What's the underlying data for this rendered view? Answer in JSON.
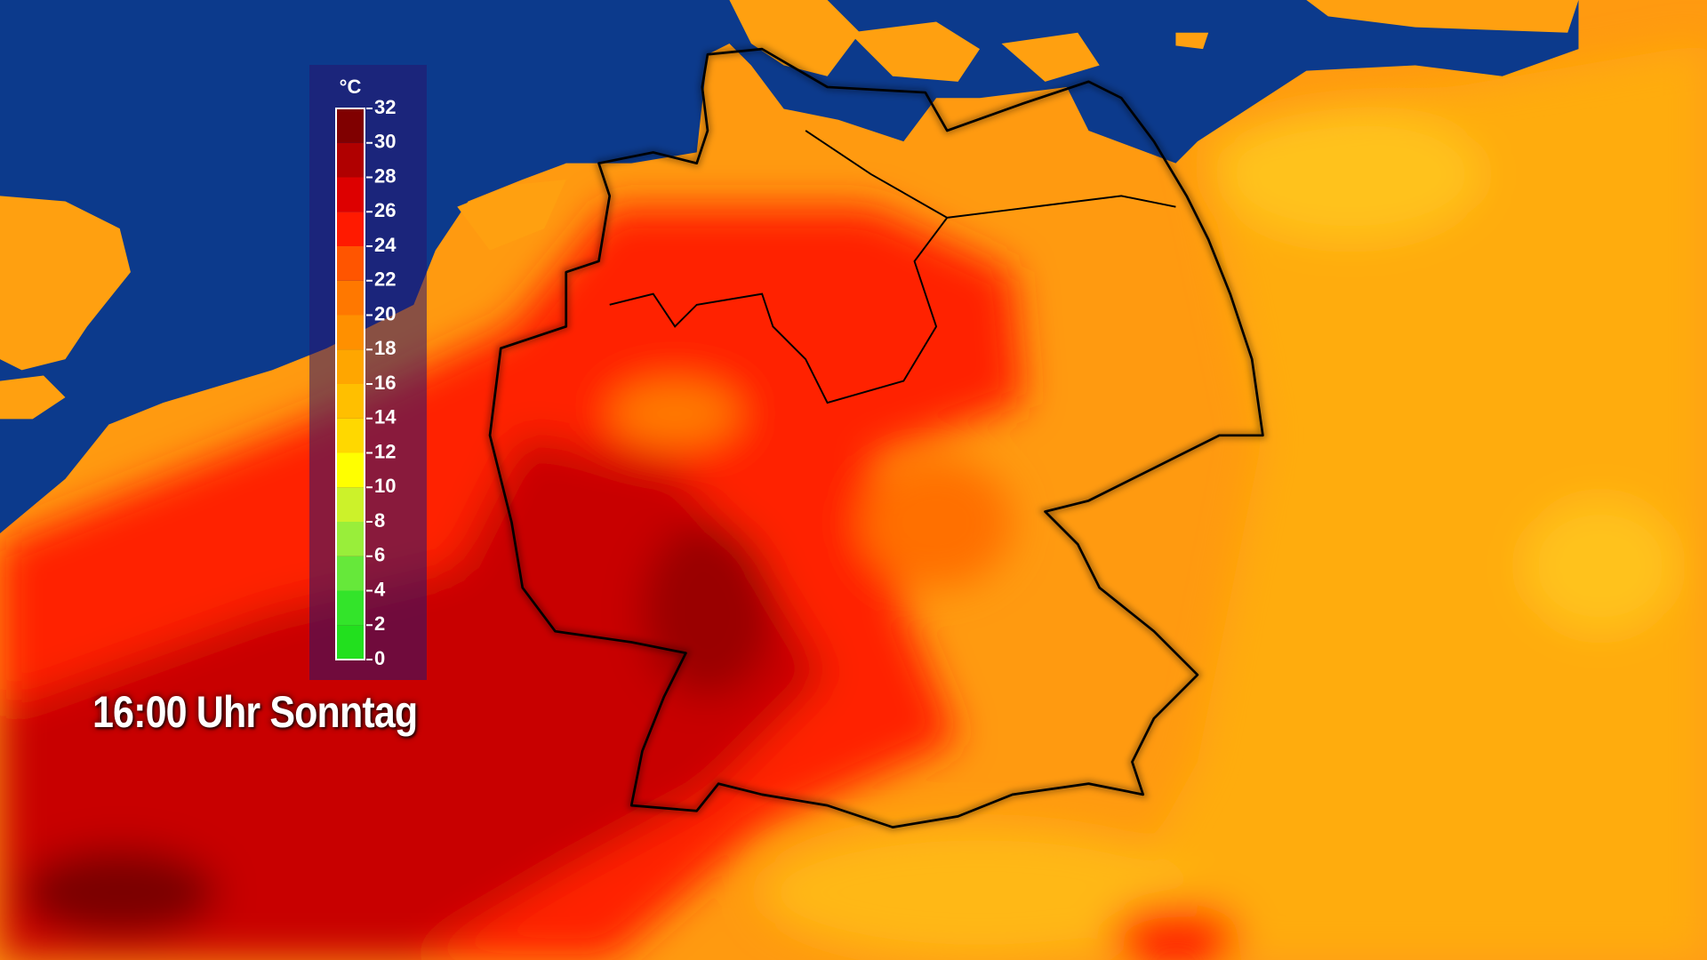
{
  "legend": {
    "unit": "°C",
    "ticks": [
      0,
      2,
      4,
      6,
      8,
      10,
      12,
      14,
      16,
      18,
      20,
      22,
      24,
      26,
      28,
      30,
      32
    ],
    "colors": [
      "#22e01e",
      "#33e42a",
      "#66e83a",
      "#99ee3a",
      "#ccf22a",
      "#ffff00",
      "#ffd800",
      "#ffbf00",
      "#ffa600",
      "#ff9000",
      "#ff7800",
      "#ff5500",
      "#ff1a00",
      "#dd0000",
      "#b00000",
      "#800000"
    ]
  },
  "caption": "16:00 Uhr Sonntag"
}
